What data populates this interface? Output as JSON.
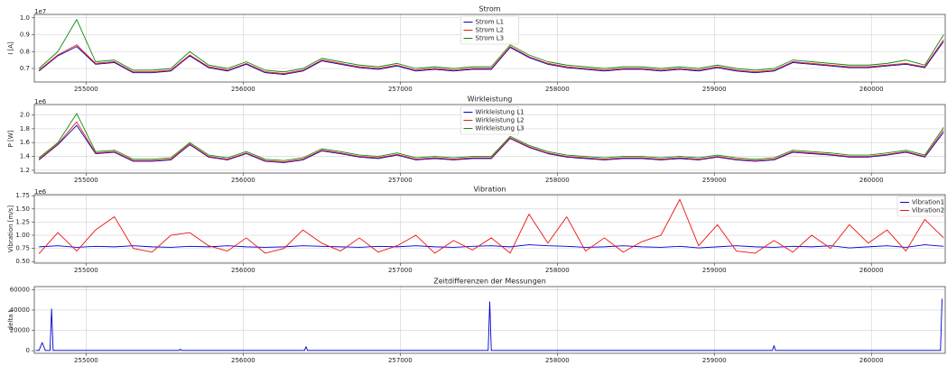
{
  "chart_data": [
    {
      "type": "line",
      "title": "Strom",
      "ylabel": "I [A]",
      "y_offset_label": "1e7",
      "legend": "upper center",
      "grid": true,
      "x": [
        254700,
        254820,
        254940,
        255060,
        255180,
        255300,
        255420,
        255540,
        255660,
        255780,
        255900,
        256020,
        256140,
        256260,
        256380,
        256500,
        256620,
        256740,
        256860,
        256980,
        257100,
        257220,
        257340,
        257460,
        257580,
        257700,
        257820,
        257940,
        258060,
        258180,
        258300,
        258420,
        258540,
        258660,
        258780,
        258900,
        259020,
        259140,
        259260,
        259380,
        259500,
        259620,
        259740,
        259860,
        259980,
        260100,
        260220,
        260340,
        260460
      ],
      "xlim": [
        254670,
        260470
      ],
      "xticks": [
        255000,
        256000,
        257000,
        258000,
        259000,
        260000
      ],
      "ylim": [
        0.62,
        1.02
      ],
      "yticks": [
        {
          "value": 0.7,
          "label": "0.7"
        },
        {
          "value": 0.8,
          "label": "0.8"
        },
        {
          "value": 0.9,
          "label": "0.9"
        },
        {
          "value": 1.0,
          "label": "1.0"
        }
      ],
      "series": [
        {
          "name": "Strom L1",
          "color": "#0000cc",
          "values": [
            0.685,
            0.775,
            0.83,
            0.725,
            0.735,
            0.675,
            0.675,
            0.685,
            0.775,
            0.705,
            0.685,
            0.725,
            0.675,
            0.665,
            0.685,
            0.745,
            0.725,
            0.705,
            0.695,
            0.715,
            0.685,
            0.695,
            0.685,
            0.695,
            0.695,
            0.825,
            0.765,
            0.725,
            0.705,
            0.695,
            0.685,
            0.695,
            0.695,
            0.685,
            0.695,
            0.685,
            0.705,
            0.685,
            0.675,
            0.685,
            0.735,
            0.725,
            0.715,
            0.705,
            0.705,
            0.715,
            0.725,
            0.705,
            0.86
          ]
        },
        {
          "name": "Strom L2",
          "color": "#e8200c",
          "values": [
            0.69,
            0.78,
            0.84,
            0.73,
            0.74,
            0.68,
            0.68,
            0.69,
            0.78,
            0.71,
            0.69,
            0.73,
            0.68,
            0.67,
            0.69,
            0.75,
            0.73,
            0.71,
            0.7,
            0.72,
            0.69,
            0.7,
            0.69,
            0.7,
            0.7,
            0.83,
            0.77,
            0.73,
            0.71,
            0.7,
            0.69,
            0.7,
            0.7,
            0.69,
            0.7,
            0.69,
            0.71,
            0.69,
            0.68,
            0.69,
            0.74,
            0.73,
            0.72,
            0.71,
            0.71,
            0.72,
            0.73,
            0.71,
            0.87
          ]
        },
        {
          "name": "Strom L3",
          "color": "#118811",
          "values": [
            0.7,
            0.8,
            0.99,
            0.74,
            0.75,
            0.69,
            0.69,
            0.7,
            0.8,
            0.72,
            0.7,
            0.74,
            0.69,
            0.68,
            0.7,
            0.76,
            0.74,
            0.72,
            0.71,
            0.73,
            0.7,
            0.71,
            0.7,
            0.71,
            0.71,
            0.84,
            0.78,
            0.74,
            0.72,
            0.71,
            0.7,
            0.71,
            0.71,
            0.7,
            0.71,
            0.7,
            0.72,
            0.7,
            0.69,
            0.7,
            0.75,
            0.74,
            0.73,
            0.72,
            0.72,
            0.73,
            0.75,
            0.72,
            0.9
          ]
        }
      ]
    },
    {
      "type": "line",
      "title": "Wirkleistung",
      "ylabel": "P [W]",
      "y_offset_label": "1e6",
      "legend": "upper center",
      "grid": true,
      "x": [
        254700,
        254820,
        254940,
        255060,
        255180,
        255300,
        255420,
        255540,
        255660,
        255780,
        255900,
        256020,
        256140,
        256260,
        256380,
        256500,
        256620,
        256740,
        256860,
        256980,
        257100,
        257220,
        257340,
        257460,
        257580,
        257700,
        257820,
        257940,
        258060,
        258180,
        258300,
        258420,
        258540,
        258660,
        258780,
        258900,
        259020,
        259140,
        259260,
        259380,
        259500,
        259620,
        259740,
        259860,
        259980,
        260100,
        260220,
        260340,
        260460
      ],
      "xlim": [
        254670,
        260470
      ],
      "xticks": [
        255000,
        256000,
        257000,
        258000,
        259000,
        260000
      ],
      "ylim": [
        1.16,
        2.15
      ],
      "yticks": [
        1.2,
        1.4,
        1.6,
        1.8,
        {
          "value": 2.0,
          "label": "2.0"
        }
      ],
      "series": [
        {
          "name": "Wirkleistung L1",
          "color": "#0000cc",
          "values": [
            1.35,
            1.57,
            1.85,
            1.44,
            1.46,
            1.33,
            1.33,
            1.35,
            1.57,
            1.39,
            1.35,
            1.44,
            1.33,
            1.31,
            1.35,
            1.48,
            1.44,
            1.39,
            1.37,
            1.42,
            1.35,
            1.37,
            1.35,
            1.37,
            1.37,
            1.66,
            1.53,
            1.44,
            1.39,
            1.37,
            1.35,
            1.37,
            1.37,
            1.35,
            1.37,
            1.35,
            1.39,
            1.35,
            1.33,
            1.35,
            1.46,
            1.44,
            1.42,
            1.39,
            1.39,
            1.42,
            1.46,
            1.39,
            1.75
          ]
        },
        {
          "name": "Wirkleistung L2",
          "color": "#e8200c",
          "values": [
            1.36,
            1.58,
            1.9,
            1.45,
            1.47,
            1.34,
            1.34,
            1.36,
            1.58,
            1.4,
            1.36,
            1.45,
            1.34,
            1.32,
            1.36,
            1.49,
            1.45,
            1.4,
            1.38,
            1.43,
            1.36,
            1.38,
            1.36,
            1.38,
            1.38,
            1.67,
            1.54,
            1.45,
            1.4,
            1.38,
            1.36,
            1.38,
            1.38,
            1.36,
            1.38,
            1.36,
            1.4,
            1.36,
            1.34,
            1.36,
            1.47,
            1.45,
            1.43,
            1.4,
            1.4,
            1.43,
            1.47,
            1.4,
            1.78
          ]
        },
        {
          "name": "Wirkleistung L3",
          "color": "#118811",
          "values": [
            1.38,
            1.6,
            2.02,
            1.47,
            1.49,
            1.36,
            1.36,
            1.38,
            1.6,
            1.42,
            1.38,
            1.47,
            1.36,
            1.34,
            1.38,
            1.51,
            1.47,
            1.42,
            1.4,
            1.45,
            1.38,
            1.4,
            1.38,
            1.4,
            1.4,
            1.69,
            1.56,
            1.47,
            1.42,
            1.4,
            1.38,
            1.4,
            1.4,
            1.38,
            1.4,
            1.38,
            1.42,
            1.38,
            1.36,
            1.38,
            1.49,
            1.47,
            1.45,
            1.42,
            1.42,
            1.45,
            1.49,
            1.42,
            1.82
          ]
        }
      ]
    },
    {
      "type": "line",
      "title": "Vibration",
      "ylabel": "Vibration [m/s]",
      "y_offset_label": "1e6",
      "legend": "upper right",
      "grid": true,
      "x": [
        254700,
        254820,
        254940,
        255060,
        255180,
        255300,
        255420,
        255540,
        255660,
        255780,
        255900,
        256020,
        256140,
        256260,
        256380,
        256500,
        256620,
        256740,
        256860,
        256980,
        257100,
        257220,
        257340,
        257460,
        257580,
        257700,
        257820,
        257940,
        258060,
        258180,
        258300,
        258420,
        258540,
        258660,
        258780,
        258900,
        259020,
        259140,
        259260,
        259380,
        259500,
        259620,
        259740,
        259860,
        259980,
        260100,
        260220,
        260340,
        260460
      ],
      "xlim": [
        254670,
        260470
      ],
      "xticks": [
        255000,
        256000,
        257000,
        258000,
        259000,
        260000
      ],
      "ylim": [
        0.47,
        1.77
      ],
      "yticks": [
        {
          "value": 0.5,
          "label": "0.50"
        },
        0.75,
        {
          "value": 1.0,
          "label": "1.00"
        },
        1.25,
        {
          "value": 1.5,
          "label": "1.50"
        },
        1.75
      ],
      "series": [
        {
          "name": "Vibration1",
          "color": "#0000dd",
          "values": [
            0.78,
            0.8,
            0.77,
            0.79,
            0.78,
            0.8,
            0.78,
            0.77,
            0.79,
            0.78,
            0.8,
            0.78,
            0.77,
            0.78,
            0.8,
            0.79,
            0.78,
            0.77,
            0.79,
            0.78,
            0.8,
            0.78,
            0.77,
            0.79,
            0.8,
            0.78,
            0.82,
            0.8,
            0.79,
            0.77,
            0.78,
            0.8,
            0.78,
            0.77,
            0.79,
            0.76,
            0.78,
            0.8,
            0.78,
            0.77,
            0.79,
            0.78,
            0.8,
            0.76,
            0.78,
            0.8,
            0.77,
            0.82,
            0.79
          ]
        },
        {
          "name": "Vibration2",
          "color": "#ee1111",
          "values": [
            0.65,
            1.05,
            0.7,
            1.1,
            1.35,
            0.75,
            0.68,
            1.0,
            1.05,
            0.8,
            0.7,
            0.95,
            0.66,
            0.75,
            1.1,
            0.85,
            0.7,
            0.95,
            0.68,
            0.8,
            1.0,
            0.66,
            0.9,
            0.72,
            0.95,
            0.66,
            1.4,
            0.85,
            1.35,
            0.7,
            0.95,
            0.68,
            0.88,
            1.0,
            1.68,
            0.8,
            1.2,
            0.7,
            0.66,
            0.9,
            0.68,
            1.0,
            0.75,
            1.2,
            0.85,
            1.1,
            0.7,
            1.3,
            0.95
          ]
        }
      ]
    },
    {
      "type": "line",
      "title": "Zeitdifferenzen der Messungen",
      "ylabel": "delta t",
      "grid": true,
      "x": [
        254680,
        254700,
        254720,
        254740,
        254770,
        254780,
        254790,
        255590,
        255600,
        255610,
        256390,
        256400,
        256410,
        257560,
        257570,
        257580,
        259370,
        259380,
        259390,
        260430,
        260440,
        260450
      ],
      "xlim": [
        254670,
        260470
      ],
      "xticks": [
        255000,
        256000,
        257000,
        258000,
        259000,
        260000
      ],
      "ylim": [
        -2500,
        63000
      ],
      "yticks": [
        0,
        20000,
        40000,
        60000
      ],
      "series": [
        {
          "name": "delta t",
          "color": "#0000cc",
          "values": [
            300,
            300,
            8000,
            300,
            300,
            41000,
            300,
            300,
            1500,
            300,
            300,
            4000,
            300,
            300,
            48000,
            300,
            300,
            5000,
            300,
            300,
            300,
            51000
          ]
        }
      ]
    }
  ]
}
